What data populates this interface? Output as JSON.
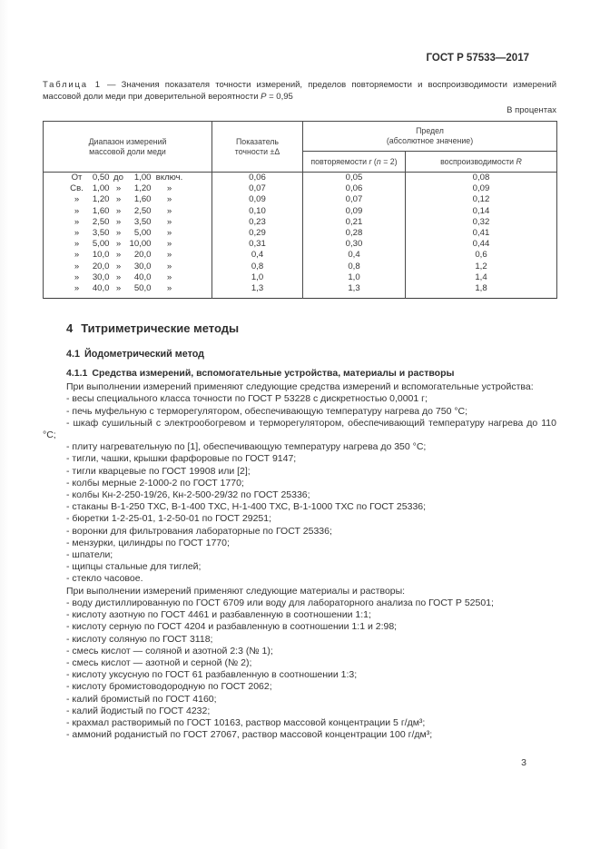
{
  "doc": {
    "header_right": "ГОСТ Р 57533—2017",
    "page_number": "3",
    "colors": {
      "paper": "#ffffff",
      "ink": "#333333",
      "table_border": "#4a4a4a"
    }
  },
  "table1": {
    "caption_label": "Таблица 1",
    "caption_text": " — Значения показателя точности измерений, пределов повторяемости и воспроизводимости измерений массовой доли меди при доверительной вероятности ",
    "caption_var": "P",
    "caption_tail": " = 0,95",
    "units_note": "В процентах",
    "header": {
      "col_range_l1": "Диапазон измерений",
      "col_range_l2": "массовой доли меди",
      "col_precision_l1": "Показатель",
      "col_precision_l2": "точности ±Δ",
      "col_limit_l1": "Предел",
      "col_limit_l2": "(абсолютное значение)",
      "sub_repeat_pre": "повторяемости ",
      "sub_repeat_var1": "r",
      "sub_repeat_mid": " (",
      "sub_repeat_var2": "n",
      "sub_repeat_tail": " = 2)",
      "sub_reprod_pre": "воспроизводимости ",
      "sub_reprod_var": "R"
    },
    "rows": [
      {
        "r1": "От",
        "v1": "0,50",
        "r2": "до",
        "v2": "1,00",
        "r3": "включ.",
        "precision": "0,06",
        "repeat": "0,05",
        "reprod": "0,08"
      },
      {
        "r1": "Св.",
        "v1": "1,00",
        "r2": "»",
        "v2": "1,20",
        "r3": "»",
        "precision": "0,07",
        "repeat": "0,06",
        "reprod": "0,09"
      },
      {
        "r1": "»",
        "v1": "1,20",
        "r2": "»",
        "v2": "1,60",
        "r3": "»",
        "precision": "0,09",
        "repeat": "0,07",
        "reprod": "0,12"
      },
      {
        "r1": "»",
        "v1": "1,60",
        "r2": "»",
        "v2": "2,50",
        "r3": "»",
        "precision": "0,10",
        "repeat": "0,09",
        "reprod": "0,14"
      },
      {
        "r1": "»",
        "v1": "2,50",
        "r2": "»",
        "v2": "3,50",
        "r3": "»",
        "precision": "0,23",
        "repeat": "0,21",
        "reprod": "0,32"
      },
      {
        "r1": "»",
        "v1": "3,50",
        "r2": "»",
        "v2": "5,00",
        "r3": "»",
        "precision": "0,29",
        "repeat": "0,28",
        "reprod": "0,41"
      },
      {
        "r1": "»",
        "v1": "5,00",
        "r2": "»",
        "v2": "10,00",
        "r3": "»",
        "precision": "0,31",
        "repeat": "0,30",
        "reprod": "0,44"
      },
      {
        "r1": "»",
        "v1": "10,0",
        "r2": "»",
        "v2": "20,0",
        "r3": "»",
        "precision": "0,4",
        "repeat": "0,4",
        "reprod": "0,6"
      },
      {
        "r1": "»",
        "v1": "20,0",
        "r2": "»",
        "v2": "30,0",
        "r3": "»",
        "precision": "0,8",
        "repeat": "0,8",
        "reprod": "1,2"
      },
      {
        "r1": "»",
        "v1": "30,0",
        "r2": "»",
        "v2": "40,0",
        "r3": "»",
        "precision": "1,0",
        "repeat": "1,0",
        "reprod": "1,4"
      },
      {
        "r1": "»",
        "v1": "40,0",
        "r2": "»",
        "v2": "50,0",
        "r3": "»",
        "precision": "1,3",
        "repeat": "1,3",
        "reprod": "1,8"
      }
    ]
  },
  "section4": {
    "h1_num": "4",
    "h1_text": "Титриметрические методы",
    "h2_num": "4.1",
    "h2_text": "Йодометрический метод",
    "h3_num": "4.1.1",
    "h3_text": "Средства измерений, вспомогательные устройства, материалы и растворы",
    "intro_devices": "При выполнении измерений применяют следующие средства измерений и вспомогательные устройства:",
    "devices": [
      "- весы специального класса точности по ГОСТ Р 53228 с дискретностью 0,0001 г;",
      "- печь муфельную с терморегулятором, обеспечивающую температуру нагрева до 750 °С;",
      "- шкаф сушильный с электрообогревом и терморегулятором, обеспечивающий температуру нагрева до 110 °С;",
      "- плиту нагревательную по [1], обеспечивающую температуру нагрева до 350 °С;",
      "- тигли, чашки, крышки фарфоровые по ГОСТ 9147;",
      "- тигли кварцевые по ГОСТ 19908 или [2];",
      "- колбы мерные 2-1000-2 по ГОСТ 1770;",
      "- колбы Кн-2-250-19/26, Кн-2-500-29/32 по ГОСТ 25336;",
      "- стаканы В-1-250 ТХС, В-1-400 ТХС, Н-1-400 ТХС, В-1-1000 ТХС по ГОСТ 25336;",
      "- бюретки 1-2-25-01, 1-2-50-01 по ГОСТ 29251;",
      "- воронки для фильтрования лабораторные по ГОСТ 25336;",
      "- мензурки, цилиндры по ГОСТ 1770;",
      "- шпатели;",
      "- щипцы стальные для тиглей;",
      "- стекло часовое."
    ],
    "intro_materials": "При выполнении измерений применяют следующие материалы и растворы:",
    "materials": [
      "- воду дистиллированную по ГОСТ 6709 или воду для лабораторного анализа по ГОСТ Р 52501;",
      "- кислоту азотную по ГОСТ 4461 и разбавленную в соотношении 1:1;",
      "- кислоту серную по ГОСТ 4204 и разбавленную в соотношении 1:1 и 2:98;",
      "- кислоту соляную по ГОСТ 3118;",
      "- смесь кислот — соляной и азотной 2:3 (№ 1);",
      "- смесь кислот — азотной и серной (№ 2);",
      "- кислоту уксусную по ГОСТ 61 разбавленную в соотношении 1:3;",
      "- кислоту бромистоводородную по ГОСТ 2062;",
      "- калий бромистый по ГОСТ 4160;",
      "- калий йодистый по ГОСТ 4232;",
      "- крахмал растворимый по ГОСТ 10163, раствор массовой концентрации 5 г/дм³;",
      "- аммоний роданистый по ГОСТ 27067, раствор массовой концентрации 100 г/дм³;"
    ]
  }
}
